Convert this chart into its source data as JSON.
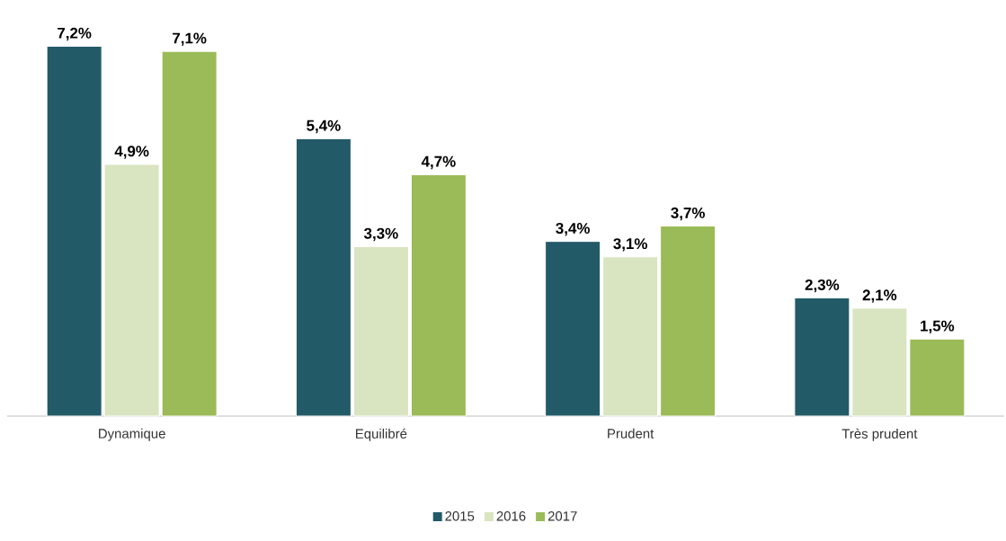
{
  "chart_data": {
    "type": "bar",
    "categories": [
      "Dynamique",
      "Equilibré",
      "Prudent",
      "Très prudent"
    ],
    "series": [
      {
        "name": "2015",
        "color": "#235a67",
        "values": [
          7.2,
          5.4,
          3.4,
          2.3
        ],
        "value_labels": [
          "7,2%",
          "5,4%",
          "3,4%",
          "2,3%"
        ]
      },
      {
        "name": "2016",
        "color": "#d9e4c0",
        "values": [
          4.9,
          3.3,
          3.1,
          2.1
        ],
        "value_labels": [
          "4,9%",
          "3,3%",
          "3,1%",
          "2,1%"
        ]
      },
      {
        "name": "2017",
        "color": "#9bbb59",
        "values": [
          7.1,
          4.7,
          3.7,
          1.5
        ],
        "value_labels": [
          "7,1%",
          "4,7%",
          "3,7%",
          "1,5%"
        ]
      }
    ],
    "legend": "bottom"
  }
}
